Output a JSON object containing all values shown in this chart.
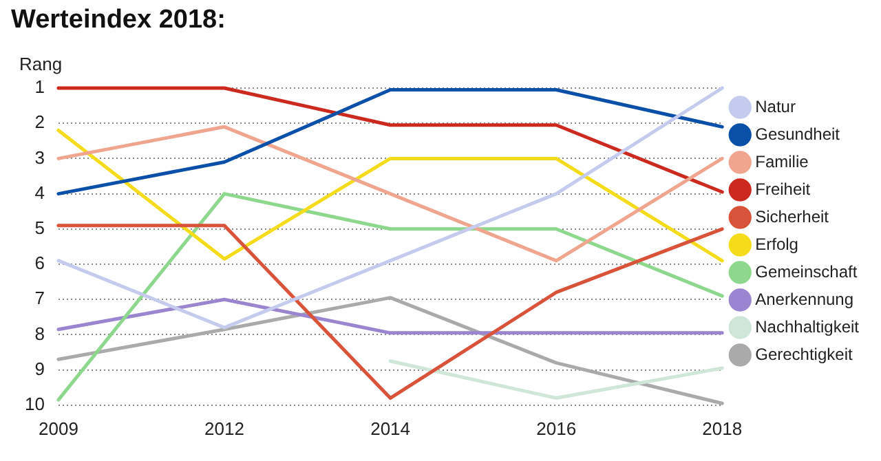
{
  "chart_data": {
    "type": "line",
    "title": "Werteindex 2018:",
    "ylabel": "Rang",
    "categories": [
      "2009",
      "2012",
      "2014",
      "2016",
      "2018"
    ],
    "ylim": [
      10,
      1
    ],
    "yticks": [
      1,
      2,
      3,
      4,
      5,
      6,
      7,
      8,
      9,
      10
    ],
    "grid": "y",
    "legend": "right",
    "marker": "none",
    "line_style": "solid",
    "series": [
      {
        "name": "Natur",
        "color": "#c5cbee",
        "values": [
          5.9,
          7.8,
          5.9,
          4.0,
          1.0
        ]
      },
      {
        "name": "Gesundheit",
        "color": "#0a4fa8",
        "values": [
          4.0,
          3.1,
          1.05,
          1.05,
          2.1
        ]
      },
      {
        "name": "Familie",
        "color": "#f0a58e",
        "values": [
          3.0,
          2.1,
          4.0,
          5.9,
          3.0
        ]
      },
      {
        "name": "Freiheit",
        "color": "#cc2a1f",
        "values": [
          1.0,
          1.0,
          2.05,
          2.05,
          3.95
        ]
      },
      {
        "name": "Sicherheit",
        "color": "#d9533a",
        "values": [
          4.9,
          4.9,
          9.8,
          6.8,
          5.0
        ]
      },
      {
        "name": "Erfolg",
        "color": "#f5dc1a",
        "values": [
          2.2,
          5.85,
          3.0,
          3.0,
          5.9
        ]
      },
      {
        "name": "Gemeinschaft",
        "color": "#8ed88e",
        "values": [
          9.85,
          4.0,
          5.0,
          5.0,
          6.9
        ]
      },
      {
        "name": "Anerkennung",
        "color": "#9a85d0",
        "values": [
          7.85,
          7.0,
          7.95,
          7.95,
          7.95
        ]
      },
      {
        "name": "Nachhaltigkeit",
        "color": "#cfe6d9",
        "values": [
          null,
          null,
          8.75,
          9.8,
          8.95
        ]
      },
      {
        "name": "Gerechtigkeit",
        "color": "#aaaaaa",
        "values": [
          8.7,
          7.85,
          6.95,
          8.8,
          9.95
        ]
      }
    ]
  }
}
